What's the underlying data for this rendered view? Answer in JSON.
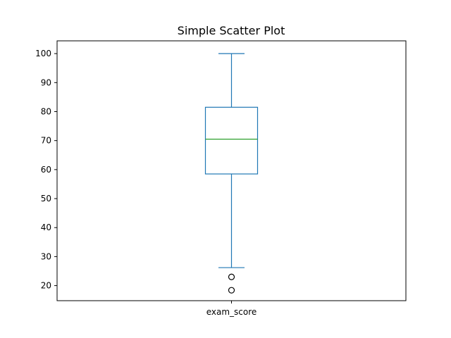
{
  "chart_data": {
    "type": "box",
    "title": "Simple Scatter Plot",
    "categories": [
      "exam_score"
    ],
    "ylim": [
      14.8,
      104.4
    ],
    "yticks": [
      20,
      30,
      40,
      50,
      60,
      70,
      80,
      90,
      100
    ],
    "grid": false,
    "boxes": [
      {
        "name": "exam_score",
        "whisker_low": 26.2,
        "q1": 58.5,
        "median": 70.5,
        "q3": 81.5,
        "whisker_high": 100,
        "outliers": [
          23.0,
          18.4
        ]
      }
    ],
    "colors": {
      "box": "#1f77b4",
      "median": "#2ca02c",
      "outlier": "#000000"
    }
  }
}
